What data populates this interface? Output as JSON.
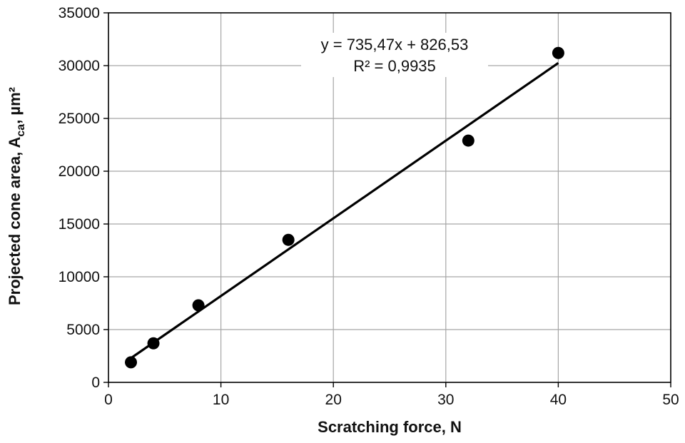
{
  "chart_data": {
    "type": "scatter",
    "title": "",
    "xlabel": "Scratching force, N",
    "ylabel": {
      "main": "Projected cone area, A",
      "subscript": "ca",
      "suffix": ", µm²"
    },
    "xlim": [
      0,
      50
    ],
    "ylim": [
      0,
      35000
    ],
    "x_ticks": [
      0,
      10,
      20,
      30,
      40,
      50
    ],
    "y_ticks": [
      0,
      5000,
      10000,
      15000,
      20000,
      25000,
      30000,
      35000
    ],
    "x_tick_labels": [
      "0",
      "10",
      "20",
      "30",
      "40",
      "50"
    ],
    "y_tick_labels": [
      "0",
      "5000",
      "10000",
      "15000",
      "20000",
      "25000",
      "30000",
      "35000"
    ],
    "grid": true,
    "points": [
      {
        "x": 2,
        "y": 1900
      },
      {
        "x": 4,
        "y": 3700
      },
      {
        "x": 8,
        "y": 7300
      },
      {
        "x": 16,
        "y": 13500
      },
      {
        "x": 32,
        "y": 22900
      },
      {
        "x": 40,
        "y": 31200
      }
    ],
    "trendline": {
      "slope": 735.47,
      "intercept": 826.53,
      "x_range": [
        2,
        40
      ],
      "equation_text": "y = 735,47x + 826,53",
      "r2_text": "R² = 0,9935"
    },
    "colors": {
      "points": "#000000",
      "trendline": "#000000",
      "grid": "#a6a6a6",
      "axes": "#000000"
    }
  }
}
